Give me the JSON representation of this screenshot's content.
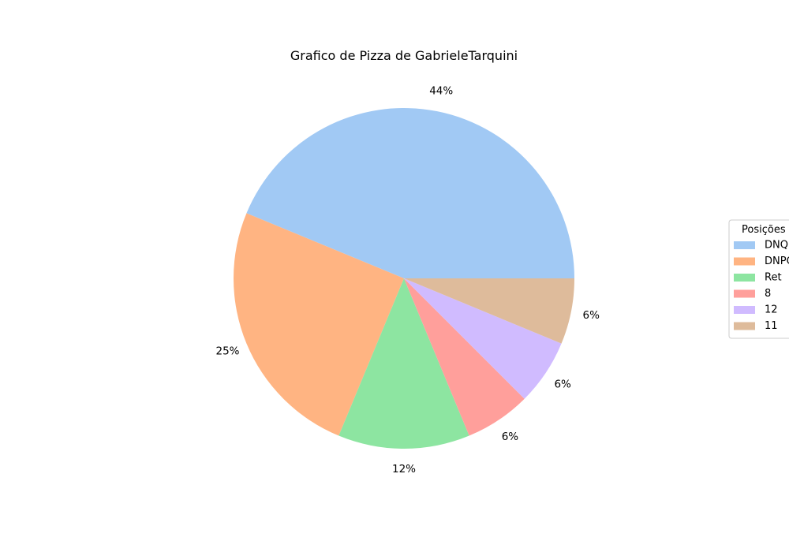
{
  "chart_data": {
    "type": "pie",
    "title": "Grafico de Pizza de GabrieleTarquini",
    "legend_title": "Posições",
    "legend_position": "right",
    "categories": [
      "DNQ",
      "DNPQ",
      "Ret",
      "8",
      "12",
      "11"
    ],
    "values": [
      7,
      4,
      2,
      1,
      1,
      1
    ],
    "labels": [
      "44%",
      "25%",
      "12%",
      "6%",
      "6%",
      "6%"
    ],
    "colors": [
      "#a1c9f4",
      "#ffb482",
      "#8de5a1",
      "#ff9f9b",
      "#d0bbff",
      "#debb9b"
    ],
    "start_angle_deg": 0,
    "direction": "counterclockwise"
  }
}
